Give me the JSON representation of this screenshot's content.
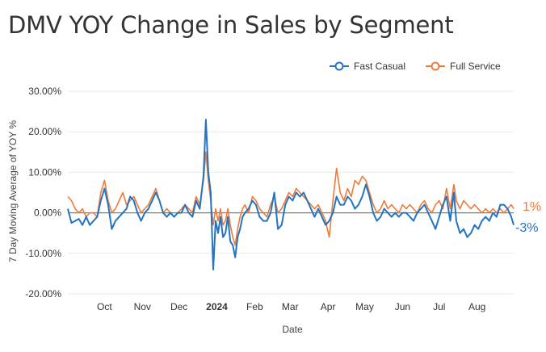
{
  "title": "DMV YOY Change in Sales by Segment",
  "colors": {
    "fast_casual": "#2474c0",
    "full_service": "#ee7a3b",
    "zero_line": "#7f7f7f",
    "grid": "#e9e9e9"
  },
  "legend": [
    {
      "name": "Fast Casual",
      "color": "#2474c0"
    },
    {
      "name": "Full Service",
      "color": "#ee7a3b"
    }
  ],
  "end_labels": {
    "full_service": "1%",
    "fast_casual": "-3%"
  },
  "chart_data": {
    "type": "line",
    "title": "DMV YOY Change in Sales by Segment",
    "xlabel": "Date",
    "ylabel": "7 Day Moving Average of YOY %",
    "ylim": [
      -20,
      30
    ],
    "yticks": [
      30,
      20,
      10,
      0,
      -10,
      -20
    ],
    "ytick_labels": [
      "30.00%",
      "20.00%",
      "10.00%",
      "0.00%",
      "-10.00%",
      "-20.00%"
    ],
    "xlim": [
      0,
      365
    ],
    "xticks": [
      {
        "label": "Oct",
        "x": 30,
        "bold": false
      },
      {
        "label": "Nov",
        "x": 61,
        "bold": false
      },
      {
        "label": "Dec",
        "x": 91,
        "bold": false
      },
      {
        "label": "2024",
        "x": 122,
        "bold": true
      },
      {
        "label": "Feb",
        "x": 153,
        "bold": false
      },
      {
        "label": "Mar",
        "x": 182,
        "bold": false
      },
      {
        "label": "Apr",
        "x": 213,
        "bold": false
      },
      {
        "label": "May",
        "x": 243,
        "bold": false
      },
      {
        "label": "Jun",
        "x": 274,
        "bold": false
      },
      {
        "label": "Jul",
        "x": 304,
        "bold": false
      },
      {
        "label": "Aug",
        "x": 335,
        "bold": false
      }
    ],
    "series": [
      {
        "name": "Fast Casual",
        "points": [
          [
            0,
            1
          ],
          [
            3,
            -2.5
          ],
          [
            6,
            -2
          ],
          [
            9,
            -1.5
          ],
          [
            12,
            -3
          ],
          [
            15,
            -1
          ],
          [
            18,
            -3
          ],
          [
            21,
            -2
          ],
          [
            24,
            -1
          ],
          [
            27,
            3
          ],
          [
            30,
            6
          ],
          [
            33,
            2
          ],
          [
            36,
            -4
          ],
          [
            39,
            -2
          ],
          [
            42,
            -1
          ],
          [
            45,
            0
          ],
          [
            48,
            1
          ],
          [
            51,
            4
          ],
          [
            54,
            3
          ],
          [
            57,
            0
          ],
          [
            60,
            -2
          ],
          [
            63,
            0
          ],
          [
            66,
            1
          ],
          [
            69,
            3
          ],
          [
            72,
            5
          ],
          [
            75,
            3
          ],
          [
            78,
            0
          ],
          [
            81,
            -1
          ],
          [
            84,
            0
          ],
          [
            87,
            -1
          ],
          [
            90,
            0
          ],
          [
            93,
            0
          ],
          [
            96,
            2
          ],
          [
            99,
            0
          ],
          [
            102,
            -1
          ],
          [
            105,
            3
          ],
          [
            108,
            1
          ],
          [
            111,
            9
          ],
          [
            113,
            23
          ],
          [
            115,
            10
          ],
          [
            117,
            5
          ],
          [
            119,
            -14
          ],
          [
            121,
            -2
          ],
          [
            123,
            -5
          ],
          [
            125,
            -1
          ],
          [
            127,
            -6
          ],
          [
            129,
            -5
          ],
          [
            131,
            -1
          ],
          [
            133,
            -7
          ],
          [
            135,
            -8
          ],
          [
            137,
            -11
          ],
          [
            139,
            -6
          ],
          [
            141,
            -4
          ],
          [
            143,
            -1
          ],
          [
            145,
            0
          ],
          [
            148,
            1
          ],
          [
            151,
            3
          ],
          [
            154,
            2
          ],
          [
            157,
            -1
          ],
          [
            160,
            -2
          ],
          [
            163,
            -2
          ],
          [
            166,
            0
          ],
          [
            169,
            5
          ],
          [
            172,
            -4
          ],
          [
            175,
            -3
          ],
          [
            178,
            2
          ],
          [
            181,
            4
          ],
          [
            184,
            3
          ],
          [
            187,
            5
          ],
          [
            190,
            4
          ],
          [
            193,
            5
          ],
          [
            196,
            3
          ],
          [
            199,
            1
          ],
          [
            202,
            -1
          ],
          [
            205,
            1
          ],
          [
            208,
            -1
          ],
          [
            211,
            -3
          ],
          [
            214,
            -2
          ],
          [
            217,
            0
          ],
          [
            220,
            4
          ],
          [
            223,
            2
          ],
          [
            226,
            2
          ],
          [
            229,
            4
          ],
          [
            232,
            3
          ],
          [
            235,
            1
          ],
          [
            238,
            2
          ],
          [
            241,
            4
          ],
          [
            244,
            7
          ],
          [
            247,
            4
          ],
          [
            250,
            0
          ],
          [
            253,
            -2
          ],
          [
            256,
            -1
          ],
          [
            259,
            1
          ],
          [
            262,
            0
          ],
          [
            265,
            -1
          ],
          [
            268,
            0
          ],
          [
            271,
            -1
          ],
          [
            274,
            0
          ],
          [
            277,
            0
          ],
          [
            280,
            -1
          ],
          [
            283,
            -2
          ],
          [
            286,
            0
          ],
          [
            289,
            1
          ],
          [
            292,
            2
          ],
          [
            295,
            0
          ],
          [
            298,
            -2
          ],
          [
            301,
            -4
          ],
          [
            304,
            -1
          ],
          [
            307,
            2
          ],
          [
            310,
            4
          ],
          [
            313,
            -2
          ],
          [
            316,
            5
          ],
          [
            318,
            -2
          ],
          [
            321,
            -5
          ],
          [
            324,
            -4
          ],
          [
            327,
            -6
          ],
          [
            330,
            -5
          ],
          [
            333,
            -3
          ],
          [
            336,
            -4
          ],
          [
            339,
            -2
          ],
          [
            342,
            -1
          ],
          [
            345,
            -2
          ],
          [
            348,
            0
          ],
          [
            351,
            -1
          ],
          [
            354,
            2
          ],
          [
            357,
            2
          ],
          [
            360,
            1
          ],
          [
            363,
            -1
          ],
          [
            365,
            -3
          ]
        ]
      },
      {
        "name": "Full Service",
        "points": [
          [
            0,
            4
          ],
          [
            3,
            3
          ],
          [
            6,
            1
          ],
          [
            9,
            0
          ],
          [
            12,
            1
          ],
          [
            15,
            -1
          ],
          [
            18,
            0
          ],
          [
            21,
            0
          ],
          [
            24,
            -1
          ],
          [
            27,
            5
          ],
          [
            30,
            8
          ],
          [
            33,
            3
          ],
          [
            36,
            0
          ],
          [
            39,
            1
          ],
          [
            42,
            3
          ],
          [
            45,
            5
          ],
          [
            48,
            2
          ],
          [
            51,
            3
          ],
          [
            54,
            4
          ],
          [
            57,
            2
          ],
          [
            60,
            0
          ],
          [
            63,
            1
          ],
          [
            66,
            2
          ],
          [
            69,
            4
          ],
          [
            72,
            6
          ],
          [
            75,
            3
          ],
          [
            78,
            0
          ],
          [
            81,
            1
          ],
          [
            84,
            0
          ],
          [
            87,
            -1
          ],
          [
            90,
            0
          ],
          [
            93,
            1
          ],
          [
            96,
            2
          ],
          [
            99,
            1
          ],
          [
            102,
            0
          ],
          [
            105,
            4
          ],
          [
            108,
            2
          ],
          [
            111,
            8
          ],
          [
            113,
            15
          ],
          [
            115,
            8
          ],
          [
            117,
            3
          ],
          [
            119,
            -3
          ],
          [
            121,
            1
          ],
          [
            123,
            -2
          ],
          [
            125,
            1
          ],
          [
            127,
            -3
          ],
          [
            129,
            -2
          ],
          [
            131,
            1
          ],
          [
            133,
            -3
          ],
          [
            135,
            -6
          ],
          [
            137,
            -8
          ],
          [
            139,
            -4
          ],
          [
            141,
            -1
          ],
          [
            143,
            1
          ],
          [
            145,
            2
          ],
          [
            148,
            0
          ],
          [
            151,
            4
          ],
          [
            154,
            3
          ],
          [
            157,
            1
          ],
          [
            160,
            0
          ],
          [
            163,
            -1
          ],
          [
            166,
            2
          ],
          [
            169,
            4
          ],
          [
            172,
            0
          ],
          [
            175,
            1
          ],
          [
            178,
            3
          ],
          [
            181,
            5
          ],
          [
            184,
            4
          ],
          [
            187,
            6
          ],
          [
            190,
            5
          ],
          [
            193,
            4
          ],
          [
            196,
            3
          ],
          [
            199,
            2
          ],
          [
            202,
            1
          ],
          [
            205,
            2
          ],
          [
            208,
            0
          ],
          [
            211,
            -2
          ],
          [
            214,
            -6
          ],
          [
            217,
            3
          ],
          [
            220,
            11
          ],
          [
            223,
            5
          ],
          [
            226,
            3
          ],
          [
            229,
            6
          ],
          [
            232,
            4
          ],
          [
            235,
            8
          ],
          [
            238,
            7
          ],
          [
            241,
            9
          ],
          [
            244,
            8
          ],
          [
            247,
            5
          ],
          [
            250,
            2
          ],
          [
            253,
            0
          ],
          [
            256,
            1
          ],
          [
            259,
            3
          ],
          [
            262,
            1
          ],
          [
            265,
            2
          ],
          [
            268,
            1
          ],
          [
            271,
            0
          ],
          [
            274,
            2
          ],
          [
            277,
            1
          ],
          [
            280,
            2
          ],
          [
            283,
            1
          ],
          [
            286,
            0
          ],
          [
            289,
            2
          ],
          [
            292,
            3
          ],
          [
            295,
            1
          ],
          [
            298,
            0
          ],
          [
            301,
            2
          ],
          [
            304,
            3
          ],
          [
            307,
            1
          ],
          [
            310,
            6
          ],
          [
            313,
            1
          ],
          [
            316,
            7
          ],
          [
            318,
            3
          ],
          [
            321,
            1
          ],
          [
            324,
            3
          ],
          [
            327,
            2
          ],
          [
            330,
            1
          ],
          [
            333,
            2
          ],
          [
            336,
            1
          ],
          [
            339,
            0
          ],
          [
            342,
            1
          ],
          [
            345,
            0
          ],
          [
            348,
            1
          ],
          [
            351,
            0
          ],
          [
            354,
            1
          ],
          [
            357,
            0
          ],
          [
            360,
            1
          ],
          [
            363,
            2
          ],
          [
            365,
            1
          ]
        ]
      }
    ]
  }
}
